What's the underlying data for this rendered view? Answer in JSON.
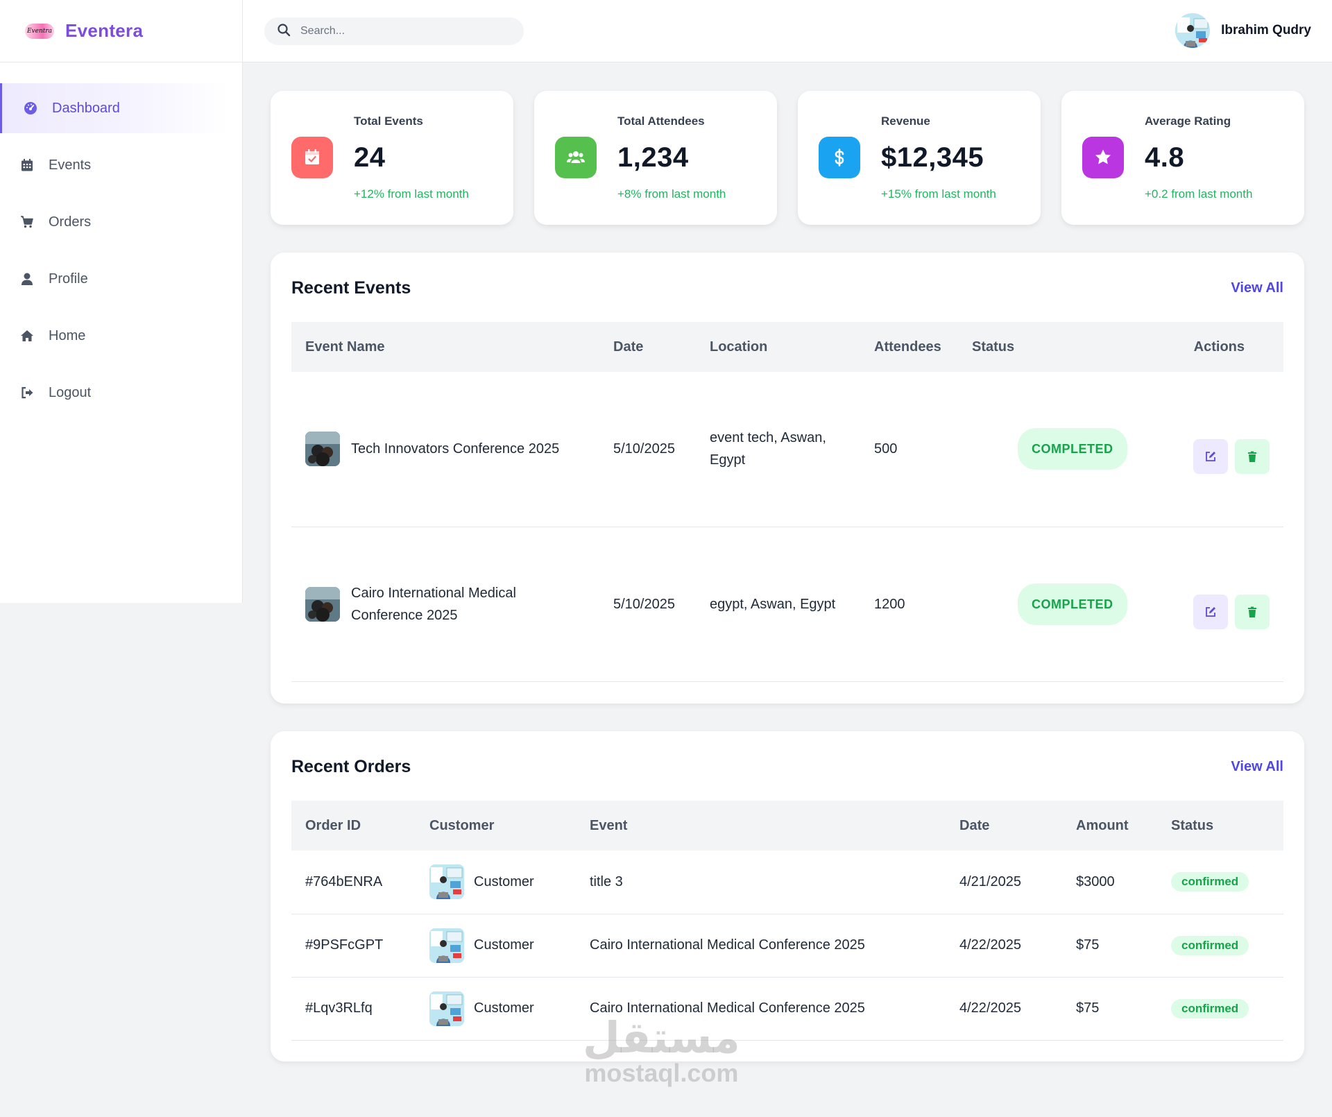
{
  "app": {
    "brand_name": "Eventera",
    "logo_text": "Eventra"
  },
  "colors": {
    "accent": "#6d5ce8",
    "success": "#22b55f",
    "events_icon_bg": "#ff6b6b",
    "attendees_icon_bg": "#56c04e",
    "revenue_icon_bg": "#1aa3f0",
    "rating_icon_bg": "#b936e0"
  },
  "sidebar": {
    "items": [
      {
        "label": "Dashboard",
        "icon": "dashboard-icon",
        "active": true
      },
      {
        "label": "Events",
        "icon": "calendar-icon"
      },
      {
        "label": "Orders",
        "icon": "cart-icon"
      },
      {
        "label": "Profile",
        "icon": "user-icon"
      },
      {
        "label": "Home",
        "icon": "home-icon"
      },
      {
        "label": "Logout",
        "icon": "logout-icon"
      }
    ]
  },
  "topbar": {
    "search_placeholder": "Search...",
    "user_name": "Ibrahim Qudry"
  },
  "stats": [
    {
      "label": "Total Events",
      "value": "24",
      "change": "+12% from last month",
      "icon": "calendar-check-icon"
    },
    {
      "label": "Total Attendees",
      "value": "1,234",
      "change": "+8% from last month",
      "icon": "users-icon"
    },
    {
      "label": "Revenue",
      "value": "$12,345",
      "change": "+15% from last month",
      "icon": "dollar-icon"
    },
    {
      "label": "Average Rating",
      "value": "4.8",
      "change": "+0.2 from last month",
      "icon": "star-icon"
    }
  ],
  "recent_events": {
    "title": "Recent Events",
    "view_all": "View All",
    "columns": [
      "Event Name",
      "Date",
      "Location",
      "Attendees",
      "Status",
      "Actions"
    ],
    "rows": [
      {
        "name": "Tech Innovators Conference 2025",
        "date": "5/10/2025",
        "location": "event tech, Aswan, Egypt",
        "attendees": "500",
        "status": "COMPLETED"
      },
      {
        "name": "Cairo International Medical Conference 2025",
        "date": "5/10/2025",
        "location": "egypt, Aswan, Egypt",
        "attendees": "1200",
        "status": "COMPLETED"
      }
    ]
  },
  "recent_orders": {
    "title": "Recent Orders",
    "view_all": "View All",
    "columns": [
      "Order ID",
      "Customer",
      "Event",
      "Date",
      "Amount",
      "Status"
    ],
    "rows": [
      {
        "id": "#764bENRA",
        "customer": "Customer",
        "event": "title 3",
        "date": "4/21/2025",
        "amount": "$3000",
        "status": "confirmed"
      },
      {
        "id": "#9PSFcGPT",
        "customer": "Customer",
        "event": "Cairo International Medical Conference 2025",
        "date": "4/22/2025",
        "amount": "$75",
        "status": "confirmed"
      },
      {
        "id": "#Lqv3RLfq",
        "customer": "Customer",
        "event": "Cairo International Medical Conference 2025",
        "date": "4/22/2025",
        "amount": "$75",
        "status": "confirmed"
      }
    ]
  },
  "watermark": {
    "arabic": "مستقل",
    "latin": "mostaql.com"
  }
}
